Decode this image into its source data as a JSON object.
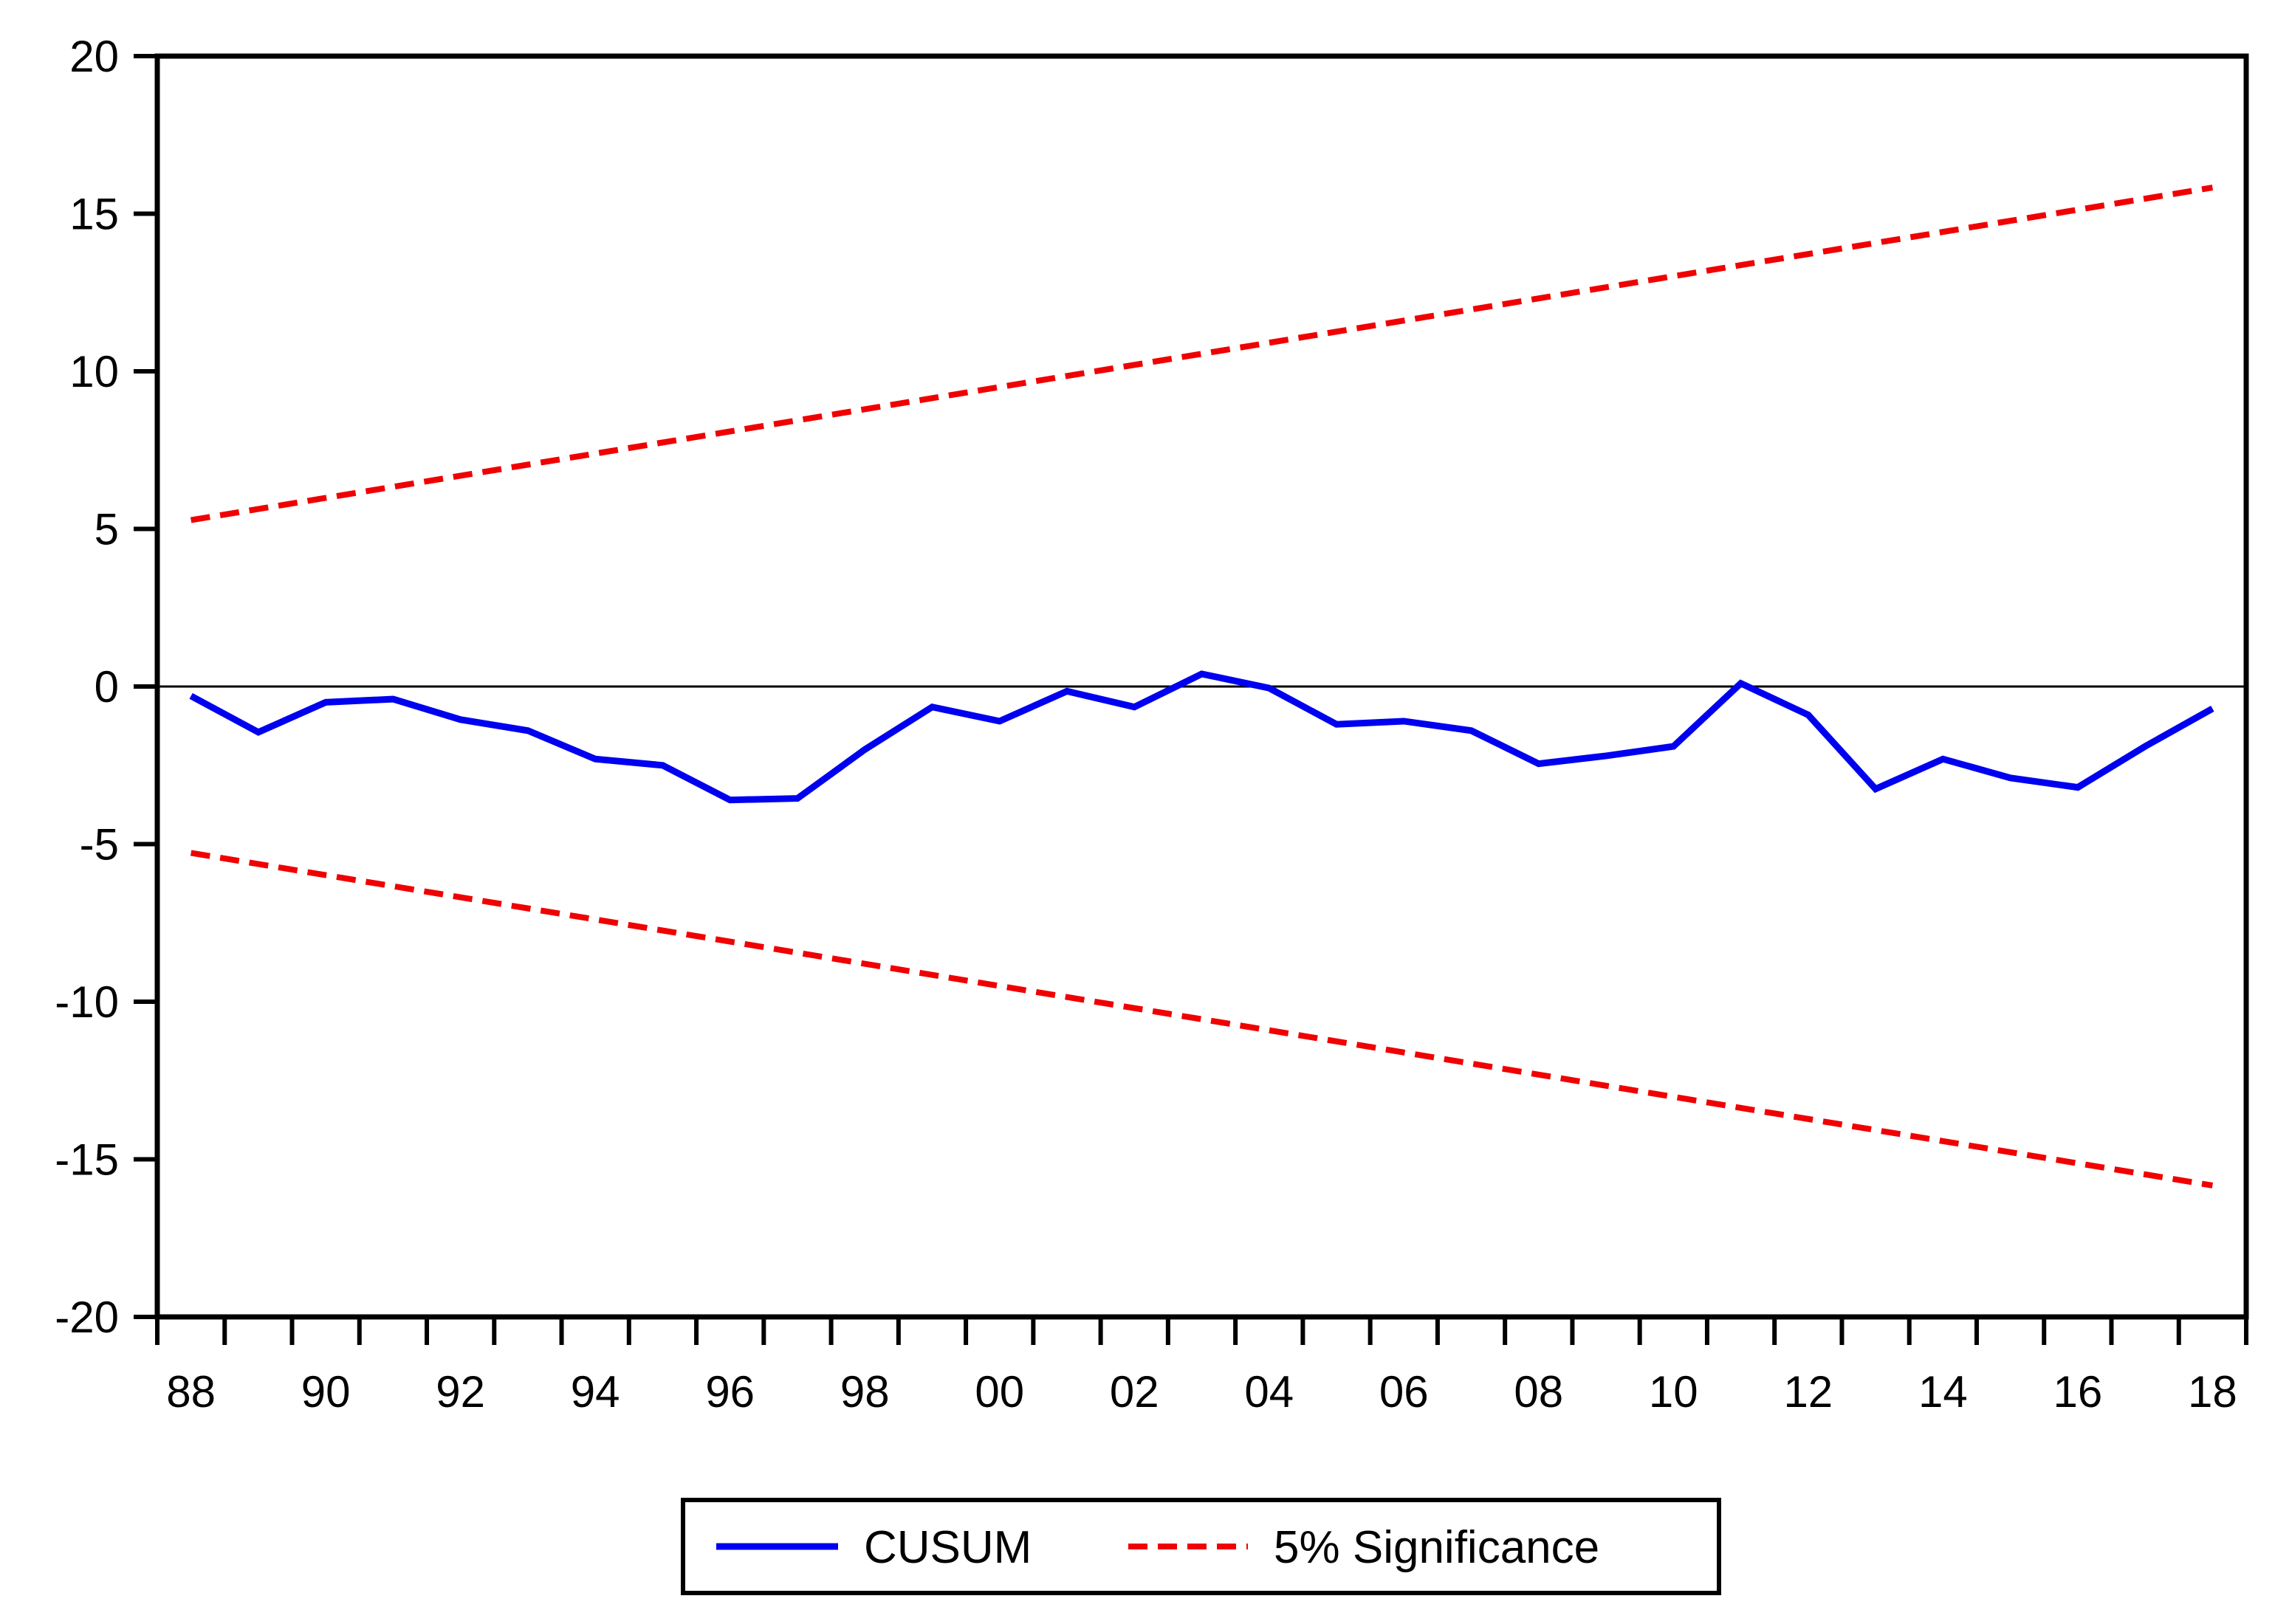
{
  "chart_data": {
    "type": "line",
    "title": "",
    "xlabel": "",
    "ylabel": "",
    "xlim": [
      1987.5,
      2018.5
    ],
    "ylim": [
      -20,
      20
    ],
    "grid": false,
    "zero_line": true,
    "background": "#ffffff",
    "axis_color": "#000000",
    "x": [
      1988,
      1989,
      1990,
      1991,
      1992,
      1993,
      1994,
      1995,
      1996,
      1997,
      1998,
      1999,
      2000,
      2001,
      2002,
      2003,
      2004,
      2005,
      2006,
      2007,
      2008,
      2009,
      2010,
      2011,
      2012,
      2013,
      2014,
      2015,
      2016,
      2017,
      2018
    ],
    "series": [
      {
        "name": "CUSUM",
        "color": "#0000f0",
        "line_style": "solid",
        "values": [
          -0.3,
          -1.45,
          -0.5,
          -0.4,
          -1.05,
          -1.4,
          -2.3,
          -2.5,
          -3.6,
          -3.55,
          -2.0,
          -0.65,
          -1.1,
          -0.15,
          -0.65,
          0.4,
          -0.05,
          -1.2,
          -1.1,
          -1.4,
          -2.45,
          -2.2,
          -1.9,
          0.1,
          -0.9,
          -3.25,
          -2.3,
          -2.9,
          -3.2,
          -1.9,
          -0.7
        ]
      },
      {
        "name": "5% Significance",
        "color": "#f00000",
        "line_style": "dashed",
        "upper_bound": {
          "x": [
            1988,
            2018
          ],
          "values": [
            5.28,
            15.83
          ]
        },
        "lower_bound": {
          "x": [
            1988,
            2018
          ],
          "values": [
            -5.28,
            -15.83
          ]
        }
      }
    ],
    "y_ticks": [
      20,
      15,
      10,
      5,
      0,
      -5,
      -10,
      -15,
      -20
    ],
    "y_tick_labels": [
      "20",
      "15",
      "10",
      "5",
      "0",
      "-5",
      "-10",
      "-15",
      "-20"
    ],
    "x_tick_label_years": [
      1988,
      1990,
      1992,
      1994,
      1996,
      1998,
      2000,
      2002,
      2004,
      2006,
      2008,
      2010,
      2012,
      2014,
      2016,
      2018
    ],
    "x_tick_labels": [
      "88",
      "90",
      "92",
      "94",
      "96",
      "98",
      "00",
      "02",
      "04",
      "06",
      "08",
      "10",
      "12",
      "14",
      "16",
      "18"
    ],
    "legend": {
      "position": "bottom-center",
      "entries": [
        {
          "label": "CUSUM",
          "color": "#0000f0",
          "style": "solid"
        },
        {
          "label": "5% Significance",
          "color": "#f00000",
          "style": "dashed"
        }
      ]
    }
  }
}
